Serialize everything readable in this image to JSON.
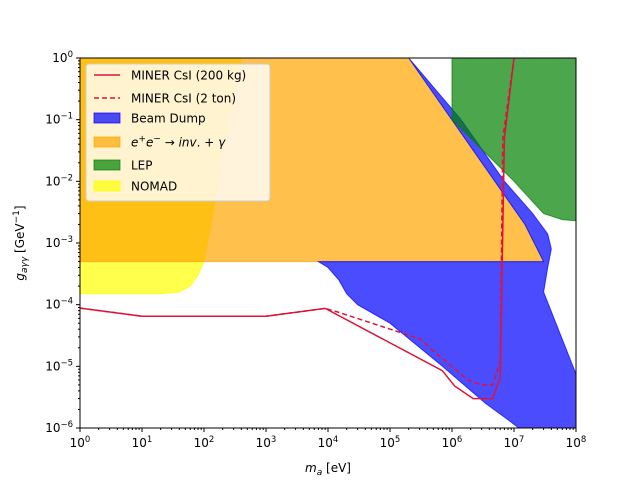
{
  "chart_data": {
    "type": "area",
    "xlabel": "m_a [eV]",
    "ylabel": "g_{aγγ} [GeV^{-1}]",
    "xscale": "log",
    "yscale": "log",
    "xlim": [
      1,
      100000000
    ],
    "ylim": [
      1e-06,
      1
    ],
    "grid": false,
    "legend_placement": "top-left",
    "x_ticks": [
      {
        "value": 1,
        "base": "10",
        "exp": "0"
      },
      {
        "value": 10,
        "base": "10",
        "exp": "1"
      },
      {
        "value": 100,
        "base": "10",
        "exp": "2"
      },
      {
        "value": 1000,
        "base": "10",
        "exp": "3"
      },
      {
        "value": 10000,
        "base": "10",
        "exp": "4"
      },
      {
        "value": 100000,
        "base": "10",
        "exp": "5"
      },
      {
        "value": 1000000,
        "base": "10",
        "exp": "6"
      },
      {
        "value": 10000000,
        "base": "10",
        "exp": "7"
      },
      {
        "value": 100000000,
        "base": "10",
        "exp": "8"
      }
    ],
    "y_ticks": [
      {
        "value": 1e-06,
        "base": "10",
        "exp": "−6"
      },
      {
        "value": 1e-05,
        "base": "10",
        "exp": "−5"
      },
      {
        "value": 0.0001,
        "base": "10",
        "exp": "−4"
      },
      {
        "value": 0.001,
        "base": "10",
        "exp": "−3"
      },
      {
        "value": 0.01,
        "base": "10",
        "exp": "−2"
      },
      {
        "value": 0.1,
        "base": "10",
        "exp": "−1"
      },
      {
        "value": 1,
        "base": "10",
        "exp": "0"
      }
    ],
    "regions": [
      {
        "name": "NOMAD",
        "color": "#ffff00",
        "alpha": 0.7,
        "points": [
          [
            1,
            0.00015
          ],
          [
            20,
            0.00015
          ],
          [
            40,
            0.00016
          ],
          [
            60,
            0.0002
          ],
          [
            80,
            0.0003
          ],
          [
            100,
            0.0005
          ],
          [
            130,
            0.002
          ],
          [
            170,
            0.01
          ],
          [
            220,
            0.05
          ],
          [
            300,
            0.2
          ],
          [
            400,
            1
          ],
          [
            1,
            1
          ]
        ]
      },
      {
        "name": "e+e- → inv. + γ",
        "color": "#ffa500",
        "alpha": 0.7,
        "points": [
          [
            1,
            0.0005
          ],
          [
            30000000,
            0.0005
          ],
          [
            15000000,
            0.002
          ],
          [
            200000,
            1
          ],
          [
            1,
            1
          ]
        ]
      },
      {
        "name": "Beam Dump",
        "color": "#0000ff",
        "alpha": 0.7,
        "points": [
          [
            200000,
            1
          ],
          [
            1400000,
            0.1
          ],
          [
            7000000,
            0.01
          ],
          [
            20000000,
            0.003
          ],
          [
            35000000,
            0.0014
          ],
          [
            40000000,
            0.0008
          ],
          [
            35000000,
            0.0004
          ],
          [
            30000000,
            0.00016
          ],
          [
            100000000,
            7.5e-06
          ],
          [
            100000000,
            1e-06
          ],
          [
            12000000,
            1e-06
          ],
          [
            7000000,
            1.5e-06
          ],
          [
            3500000,
            2.5e-06
          ],
          [
            700000,
            1e-05
          ],
          [
            100000,
            5e-05
          ],
          [
            30000,
            0.0001
          ],
          [
            20000,
            0.00015
          ],
          [
            15000,
            0.00025
          ],
          [
            10000,
            0.0004
          ],
          [
            7000,
            0.0005
          ],
          [
            30000000,
            0.0005
          ],
          [
            15000000,
            0.002
          ],
          [
            200000,
            1
          ]
        ]
      },
      {
        "name": "LEP",
        "color": "#008000",
        "alpha": 0.7,
        "points": [
          [
            1000000,
            1
          ],
          [
            100000000,
            1
          ],
          [
            100000000,
            0.0023
          ],
          [
            60000000,
            0.0024
          ],
          [
            30000000,
            0.003
          ],
          [
            10000000,
            0.01
          ],
          [
            1000000,
            0.1
          ]
        ]
      }
    ],
    "series": [
      {
        "name": "MINER CsI (200 kg)",
        "color": "#dc143c",
        "style": "solid",
        "x": [
          1,
          10,
          1000,
          9000,
          700000,
          1100000,
          2200000,
          3500000,
          4500000,
          6000000,
          7000000,
          10000000
        ],
        "y": [
          8.8e-05,
          6.5e-05,
          6.5e-05,
          8.7e-05,
          8.5e-06,
          4.8e-06,
          3e-06,
          3e-06,
          3e-06,
          6.5e-06,
          0.05,
          1
        ]
      },
      {
        "name": "MINER CsI (2 ton)",
        "color": "#dc143c",
        "style": "dashed",
        "x": [
          1,
          10,
          1000,
          9000,
          15000,
          300000,
          800000,
          1800000,
          3000000,
          4500000,
          6000000,
          6600000,
          10000000
        ],
        "y": [
          8.8e-05,
          6.5e-05,
          6.5e-05,
          8.7e-05,
          7.5e-05,
          2.8e-05,
          1.2e-05,
          6e-06,
          5e-06,
          5e-06,
          1.2e-05,
          0.05,
          1
        ]
      }
    ],
    "legend": [
      {
        "label_plain": "MINER CsI (200 kg)",
        "kind": "line",
        "color": "#dc143c",
        "dash": false
      },
      {
        "label_plain": "MINER CsI (2 ton)",
        "kind": "line",
        "color": "#dc143c",
        "dash": true
      },
      {
        "label_plain": "Beam Dump",
        "kind": "patch",
        "color": "#0000ff"
      },
      {
        "label_plain": "e+e− → inv. + γ",
        "kind": "patch",
        "color": "#ffa500"
      },
      {
        "label_plain": "LEP",
        "kind": "patch",
        "color": "#008000"
      },
      {
        "label_plain": "NOMAD",
        "kind": "patch",
        "color": "#ffff00"
      }
    ]
  }
}
